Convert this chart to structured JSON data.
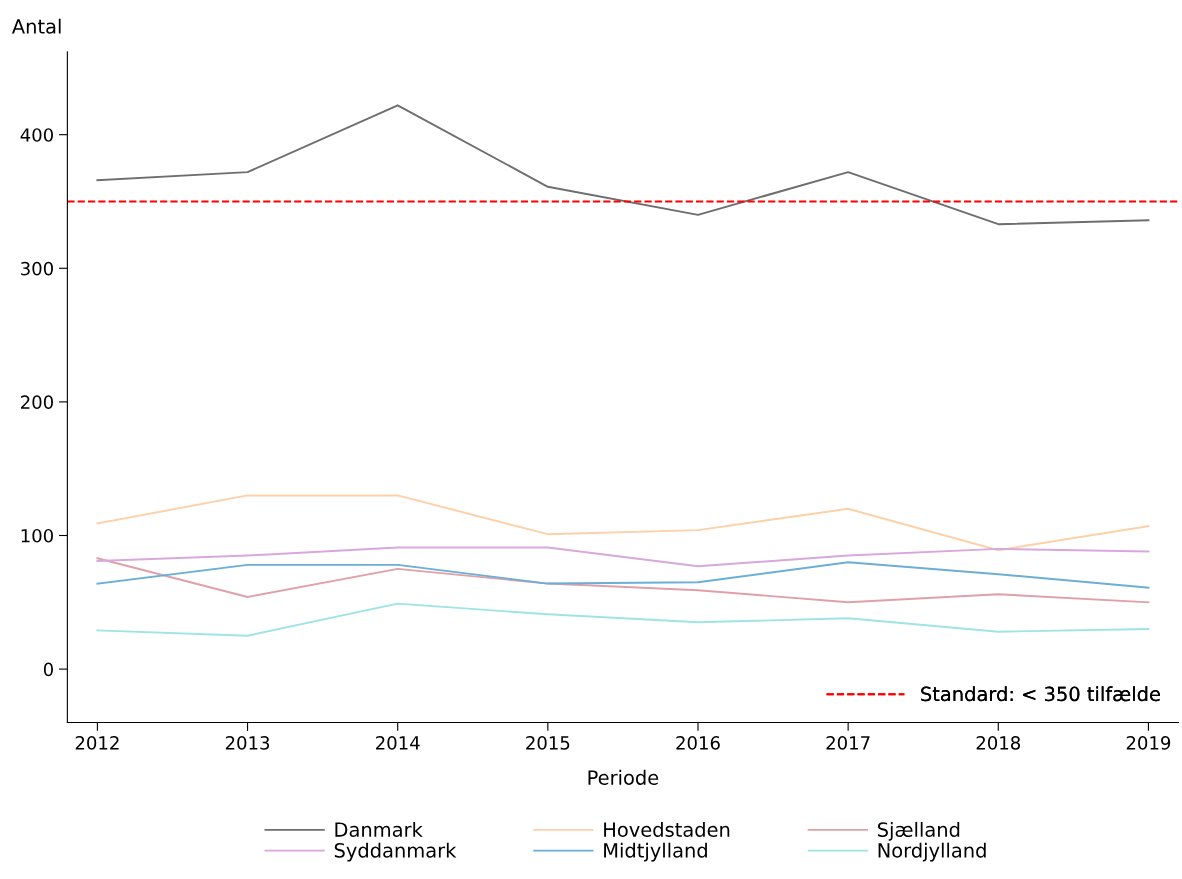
{
  "chart_data": {
    "type": "line",
    "ylabel": "Antal",
    "xlabel": "Periode",
    "x": [
      2012,
      2013,
      2014,
      2015,
      2016,
      2017,
      2018,
      2019
    ],
    "xlim": [
      2011.8,
      2019.2
    ],
    "xticks": [
      2012,
      2013,
      2014,
      2015,
      2016,
      2017,
      2018,
      2019
    ],
    "ylim": [
      -40,
      462
    ],
    "yticks": [
      0,
      100,
      200,
      300,
      400
    ],
    "series": [
      {
        "name": "Danmark",
        "color": "#6e6e6e",
        "values": [
          366,
          372,
          422,
          361,
          340,
          372,
          333,
          336
        ]
      },
      {
        "name": "Hovedstaden",
        "color": "#fdd0a8",
        "values": [
          109,
          130,
          130,
          101,
          104,
          120,
          89,
          107
        ]
      },
      {
        "name": "Sjælland",
        "color": "#e0a0a8",
        "values": [
          83,
          54,
          75,
          64,
          59,
          50,
          56,
          50
        ]
      },
      {
        "name": "Syddanmark",
        "color": "#d8a8dc",
        "values": [
          81,
          85,
          91,
          91,
          77,
          85,
          90,
          88
        ]
      },
      {
        "name": "Midtjylland",
        "color": "#6baed6",
        "values": [
          64,
          78,
          78,
          64,
          65,
          80,
          71,
          61
        ]
      },
      {
        "name": "Nordjylland",
        "color": "#9ee4e6",
        "values": [
          29,
          25,
          49,
          41,
          35,
          38,
          28,
          30
        ]
      }
    ],
    "ref_lines": [
      {
        "axis": "y",
        "value": 350,
        "label": "Standard: < 350 tilfælde",
        "color": "#ff0000",
        "line_style": "dashed"
      }
    ],
    "legend": "bottom",
    "grid": false,
    "marker": "none",
    "line_style": "solid"
  }
}
